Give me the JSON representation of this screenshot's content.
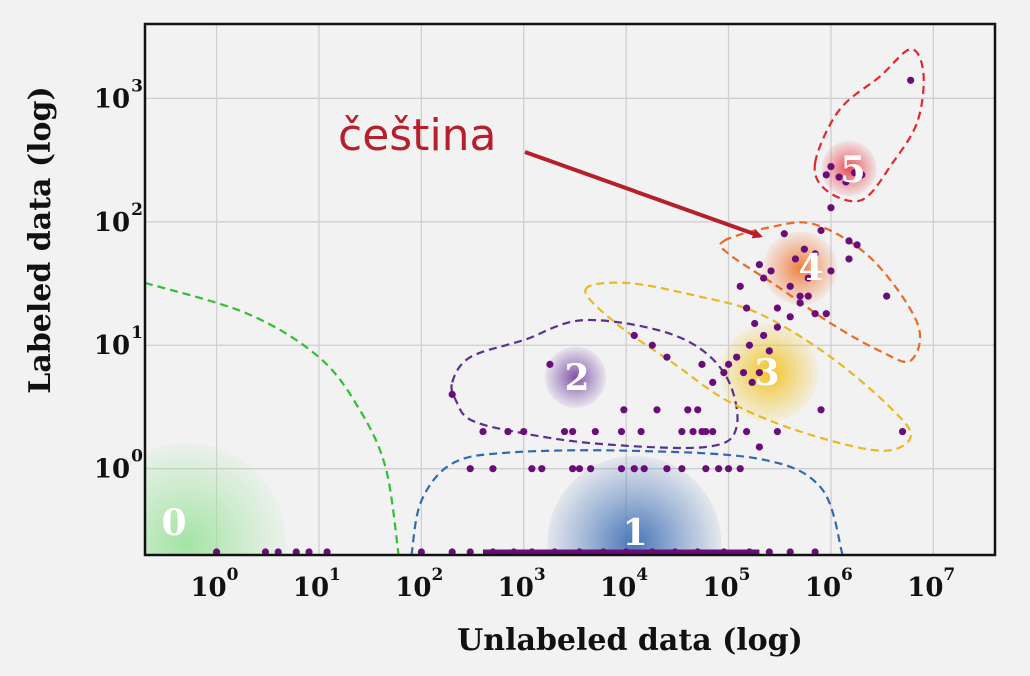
{
  "chart_data": {
    "type": "scatter",
    "title": "",
    "xlabel": "Unlabeled data (log)",
    "ylabel": "Labeled data (log)",
    "x_scale": "log",
    "y_scale": "log",
    "xlim": [
      0.2,
      40000000
    ],
    "ylim": [
      0.2,
      4000
    ],
    "grid": true,
    "x_ticks": [
      {
        "base": "10",
        "exp": "0",
        "value": 1
      },
      {
        "base": "10",
        "exp": "1",
        "value": 10
      },
      {
        "base": "10",
        "exp": "2",
        "value": 100
      },
      {
        "base": "10",
        "exp": "3",
        "value": 1000
      },
      {
        "base": "10",
        "exp": "4",
        "value": 10000
      },
      {
        "base": "10",
        "exp": "5",
        "value": 100000
      },
      {
        "base": "10",
        "exp": "6",
        "value": 1000000
      },
      {
        "base": "10",
        "exp": "7",
        "value": 10000000
      }
    ],
    "y_ticks": [
      {
        "base": "10",
        "exp": "0",
        "value": 1
      },
      {
        "base": "10",
        "exp": "1",
        "value": 10
      },
      {
        "base": "10",
        "exp": "2",
        "value": 100
      },
      {
        "base": "10",
        "exp": "3",
        "value": 1000
      }
    ],
    "clusters": [
      {
        "label": "0",
        "color": "#9fe39f",
        "cx": 0.5,
        "cy": 0.25,
        "r": 0.98,
        "boundary": [
          [
            0.2,
            32
          ],
          [
            2,
            18
          ],
          [
            10,
            8
          ],
          [
            25,
            3
          ],
          [
            45,
            1
          ],
          [
            60,
            0.2
          ]
        ]
      },
      {
        "label": "1",
        "color": "#3f6fb5",
        "cx": 12000,
        "cy": 0.25,
        "r": 0.85,
        "boundary": [
          [
            80,
            0.2
          ],
          [
            100,
            0.55
          ],
          [
            200,
            1.1
          ],
          [
            700,
            1.35
          ],
          [
            10000,
            1.4
          ],
          [
            200000,
            1.2
          ],
          [
            800000,
            0.7
          ],
          [
            1300000,
            0.2
          ]
        ]
      },
      {
        "label": "2",
        "color": "#7a4aa6",
        "cx": 3200,
        "cy": 5.5,
        "r": 0.3,
        "boundary": [
          [
            200,
            5
          ],
          [
            300,
            8
          ],
          [
            1000,
            11
          ],
          [
            4000,
            16
          ],
          [
            30000,
            12
          ],
          [
            90000,
            6
          ],
          [
            120000,
            2.2
          ],
          [
            60000,
            1.5
          ],
          [
            5000,
            1.6
          ],
          [
            800,
            2
          ],
          [
            300,
            2.5
          ],
          [
            220,
            3.5
          ]
        ]
      },
      {
        "label": "3",
        "color": "#f2c21e",
        "cx": 250000,
        "cy": 6,
        "r": 0.48,
        "boundary": [
          [
            4000,
            28
          ],
          [
            10000,
            32
          ],
          [
            50000,
            25
          ],
          [
            200000,
            18
          ],
          [
            1000000,
            8
          ],
          [
            4000000,
            3
          ],
          [
            6000000,
            1.8
          ],
          [
            3000000,
            1.4
          ],
          [
            500000,
            2
          ],
          [
            100000,
            3.5
          ],
          [
            30000,
            7
          ],
          [
            8000,
            15
          ]
        ]
      },
      {
        "label": "4",
        "color": "#f07a3a",
        "cx": 500000,
        "cy": 42,
        "r": 0.36,
        "boundary": [
          [
            90000,
            70
          ],
          [
            250000,
            90
          ],
          [
            700000,
            95
          ],
          [
            2500000,
            50
          ],
          [
            7000000,
            15
          ],
          [
            6000000,
            7.5
          ],
          [
            3000000,
            9
          ],
          [
            1000000,
            15
          ],
          [
            300000,
            30
          ],
          [
            100000,
            55
          ]
        ]
      },
      {
        "label": "5",
        "color": "#e8454f",
        "cx": 1500000,
        "cy": 270,
        "r": 0.27,
        "boundary": [
          [
            700000,
            300
          ],
          [
            1200000,
            800
          ],
          [
            3000000,
            1500
          ],
          [
            6000000,
            2500
          ],
          [
            8000000,
            1600
          ],
          [
            7000000,
            650
          ],
          [
            4000000,
            300
          ],
          [
            2000000,
            150
          ],
          [
            900000,
            180
          ]
        ]
      }
    ],
    "points": [
      [
        1,
        0.2
      ],
      [
        3,
        0.2
      ],
      [
        4,
        0.2
      ],
      [
        6,
        0.2
      ],
      [
        8,
        0.2
      ],
      [
        12,
        0.2
      ],
      [
        100,
        0.2
      ],
      [
        200,
        0.2
      ],
      [
        300,
        0.2
      ],
      [
        500,
        0.2
      ],
      [
        800,
        0.2
      ],
      [
        1200,
        0.2
      ],
      [
        2000,
        0.2
      ],
      [
        3500,
        0.2
      ],
      [
        6000,
        0.2
      ],
      [
        10000,
        0.2
      ],
      [
        18000,
        0.2
      ],
      [
        30000,
        0.2
      ],
      [
        50000,
        0.2
      ],
      [
        90000,
        0.2
      ],
      [
        160000,
        0.2
      ],
      [
        250000,
        0.2
      ],
      [
        400000,
        0.2
      ],
      [
        700000,
        0.2
      ],
      [
        300,
        1
      ],
      [
        500,
        1
      ],
      [
        1200,
        1
      ],
      [
        1500,
        1
      ],
      [
        3000,
        1
      ],
      [
        3500,
        1
      ],
      [
        4500,
        1
      ],
      [
        9000,
        1
      ],
      [
        12000,
        1
      ],
      [
        15000,
        1
      ],
      [
        25000,
        1
      ],
      [
        35000,
        1
      ],
      [
        60000,
        1
      ],
      [
        80000,
        1
      ],
      [
        100000,
        1
      ],
      [
        130000,
        1
      ],
      [
        200,
        4
      ],
      [
        1800,
        7
      ],
      [
        1000,
        2
      ],
      [
        400,
        2
      ],
      [
        700,
        2
      ],
      [
        2500,
        2
      ],
      [
        3000,
        2
      ],
      [
        5000,
        2
      ],
      [
        9000,
        2
      ],
      [
        14000,
        2
      ],
      [
        20000,
        3
      ],
      [
        35000,
        2
      ],
      [
        40000,
        3
      ],
      [
        45000,
        2
      ],
      [
        50000,
        3
      ],
      [
        55000,
        2
      ],
      [
        60000,
        2
      ],
      [
        70000,
        2
      ],
      [
        9500,
        3
      ],
      [
        12000,
        12
      ],
      [
        18000,
        10
      ],
      [
        25000,
        8
      ],
      [
        55000,
        7
      ],
      [
        70000,
        5
      ],
      [
        90000,
        6
      ],
      [
        100000,
        7
      ],
      [
        120000,
        8
      ],
      [
        140000,
        6
      ],
      [
        160000,
        10
      ],
      [
        170000,
        5
      ],
      [
        200000,
        6
      ],
      [
        220000,
        12
      ],
      [
        250000,
        9
      ],
      [
        300000,
        14
      ],
      [
        400000,
        17
      ],
      [
        500000,
        22
      ],
      [
        600000,
        25
      ],
      [
        700000,
        18
      ],
      [
        800000,
        3
      ],
      [
        150000,
        2
      ],
      [
        200000,
        1.5
      ],
      [
        300000,
        2
      ],
      [
        5000000,
        2
      ],
      [
        130000,
        30
      ],
      [
        150000,
        20
      ],
      [
        180000,
        15
      ],
      [
        200000,
        45
      ],
      [
        220000,
        35
      ],
      [
        260000,
        40
      ],
      [
        300000,
        20
      ],
      [
        350000,
        80
      ],
      [
        400000,
        30
      ],
      [
        450000,
        50
      ],
      [
        500000,
        25
      ],
      [
        550000,
        60
      ],
      [
        600000,
        35
      ],
      [
        700000,
        55
      ],
      [
        800000,
        85
      ],
      [
        900000,
        18
      ],
      [
        1000000,
        40
      ],
      [
        1500000,
        70
      ],
      [
        1800000,
        65
      ],
      [
        3500000,
        25
      ],
      [
        1500000,
        50
      ],
      [
        900000,
        240
      ],
      [
        1000000,
        280
      ],
      [
        1200000,
        230
      ],
      [
        1400000,
        210
      ],
      [
        1700000,
        250
      ],
      [
        2000000,
        240
      ],
      [
        1000000,
        130
      ],
      [
        6000000,
        1400
      ]
    ],
    "annotation": {
      "text": "čeština",
      "from": [
        3000,
        130
      ],
      "to": [
        300000,
        60
      ]
    }
  }
}
